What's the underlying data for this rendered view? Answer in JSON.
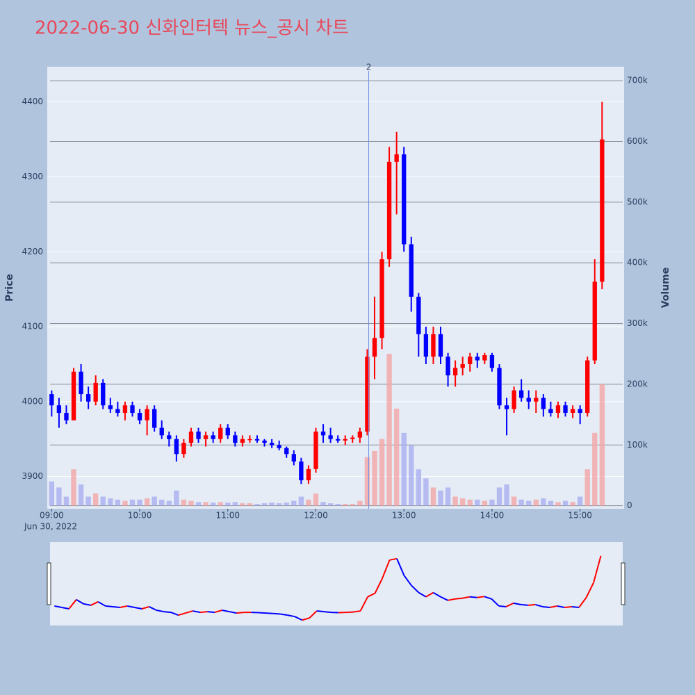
{
  "chart_data": {
    "type": "candlestick",
    "title": "2022-06-30 신화인터텍 뉴스_공시 차트",
    "y_label": "Price",
    "y2_label": "Volume",
    "x_subtitle": "Jun 30, 2022",
    "increasing_color": "#ff0000",
    "decreasing_color": "#0000ff",
    "volume_increasing_color": "#f4a6a6",
    "volume_decreasing_color": "#a9aff0",
    "grid": true,
    "x": [
      "09:00",
      "09:05",
      "09:10",
      "09:15",
      "09:20",
      "09:25",
      "09:30",
      "09:35",
      "09:40",
      "09:45",
      "09:50",
      "09:55",
      "10:00",
      "10:05",
      "10:10",
      "10:15",
      "10:20",
      "10:25",
      "10:30",
      "10:35",
      "10:40",
      "10:45",
      "10:50",
      "10:55",
      "11:00",
      "11:05",
      "11:10",
      "11:15",
      "11:20",
      "11:25",
      "11:30",
      "11:35",
      "11:40",
      "11:45",
      "11:50",
      "11:55",
      "12:00",
      "12:05",
      "12:10",
      "12:15",
      "12:20",
      "12:25",
      "12:30",
      "12:35",
      "12:40",
      "12:45",
      "12:50",
      "12:55",
      "13:00",
      "13:05",
      "13:10",
      "13:15",
      "13:20",
      "13:25",
      "13:30",
      "13:35",
      "13:40",
      "13:45",
      "13:50",
      "13:55",
      "14:00",
      "14:05",
      "14:10",
      "14:15",
      "14:20",
      "14:25",
      "14:30",
      "14:35",
      "14:40",
      "14:45",
      "14:50",
      "14:55",
      "15:00",
      "15:05",
      "15:10",
      "15:15"
    ],
    "open": [
      4010,
      3995,
      3985,
      3975,
      4040,
      4010,
      4000,
      4025,
      3995,
      3990,
      3985,
      3995,
      3985,
      3975,
      3990,
      3965,
      3955,
      3950,
      3930,
      3945,
      3960,
      3950,
      3955,
      3950,
      3965,
      3955,
      3945,
      3950,
      3950,
      3948,
      3945,
      3942,
      3938,
      3930,
      3920,
      3895,
      3910,
      3960,
      3955,
      3950,
      3948,
      3950,
      3952,
      3960,
      4060,
      4085,
      4190,
      4320,
      4330,
      4210,
      4140,
      4090,
      4060,
      4090,
      4060,
      4035,
      4045,
      4050,
      4060,
      4055,
      4062,
      4045,
      3995,
      3990,
      4015,
      4005,
      4000,
      4005,
      3990,
      3985,
      3995,
      3985,
      3990,
      3985,
      4055,
      4160
    ],
    "high": [
      4015,
      4005,
      3995,
      4045,
      4050,
      4020,
      4035,
      4030,
      4005,
      4000,
      4000,
      4000,
      3990,
      3995,
      3995,
      3975,
      3960,
      3955,
      3950,
      3965,
      3965,
      3960,
      3960,
      3970,
      3970,
      3960,
      3955,
      3955,
      3955,
      3950,
      3950,
      3948,
      3940,
      3935,
      3925,
      3915,
      3965,
      3970,
      3965,
      3955,
      3955,
      3955,
      3965,
      4070,
      4140,
      4200,
      4340,
      4360,
      4340,
      4220,
      4145,
      4100,
      4100,
      4100,
      4065,
      4055,
      4060,
      4065,
      4065,
      4065,
      4065,
      4050,
      4005,
      4020,
      4030,
      4015,
      4015,
      4010,
      4000,
      4000,
      4000,
      3995,
      3995,
      4060,
      4190,
      4400
    ],
    "low": [
      3980,
      3965,
      3970,
      3975,
      4000,
      3990,
      3995,
      3990,
      3985,
      3980,
      3975,
      3980,
      3970,
      3955,
      3960,
      3950,
      3940,
      3920,
      3925,
      3940,
      3945,
      3940,
      3945,
      3945,
      3950,
      3940,
      3940,
      3945,
      3945,
      3940,
      3938,
      3935,
      3925,
      3915,
      3890,
      3890,
      3905,
      3945,
      3945,
      3945,
      3942,
      3945,
      3945,
      3955,
      4030,
      4070,
      4180,
      4250,
      4200,
      4120,
      4060,
      4050,
      4050,
      4050,
      4020,
      4020,
      4035,
      4040,
      4045,
      4050,
      4040,
      3990,
      3955,
      3985,
      4000,
      3990,
      3985,
      3980,
      3980,
      3978,
      3980,
      3978,
      3970,
      3980,
      4050,
      4150
    ],
    "close": [
      3995,
      3985,
      3975,
      4040,
      4010,
      4000,
      4025,
      3995,
      3990,
      3985,
      3995,
      3985,
      3975,
      3990,
      3965,
      3955,
      3950,
      3930,
      3945,
      3960,
      3950,
      3955,
      3950,
      3965,
      3955,
      3945,
      3950,
      3950,
      3948,
      3945,
      3942,
      3938,
      3930,
      3920,
      3895,
      3910,
      3960,
      3955,
      3950,
      3948,
      3950,
      3952,
      3960,
      4060,
      4085,
      4190,
      4320,
      4330,
      4210,
      4140,
      4090,
      4060,
      4090,
      4060,
      4035,
      4045,
      4050,
      4060,
      4055,
      4062,
      4045,
      3995,
      3990,
      4015,
      4005,
      4000,
      4005,
      3990,
      3985,
      3995,
      3985,
      3990,
      3985,
      4055,
      4160,
      4350
    ],
    "volume": [
      40000,
      30000,
      15000,
      60000,
      35000,
      15000,
      20000,
      15000,
      12000,
      10000,
      8000,
      10000,
      10000,
      12000,
      15000,
      10000,
      8000,
      25000,
      10000,
      8000,
      6000,
      6000,
      5000,
      6000,
      5000,
      6000,
      4000,
      4000,
      3000,
      4000,
      5000,
      4000,
      5000,
      8000,
      15000,
      10000,
      20000,
      6000,
      4000,
      3000,
      3000,
      3000,
      8000,
      80000,
      90000,
      110000,
      250000,
      160000,
      120000,
      100000,
      60000,
      45000,
      30000,
      25000,
      30000,
      15000,
      12000,
      10000,
      10000,
      8000,
      10000,
      30000,
      35000,
      15000,
      10000,
      8000,
      10000,
      12000,
      8000,
      6000,
      8000,
      6000,
      15000,
      60000,
      120000,
      200000
    ],
    "xlim": [
      "08:57",
      "15:30"
    ],
    "xticks": [
      "09:00",
      "10:00",
      "11:00",
      "12:00",
      "13:00",
      "14:00",
      "15:00"
    ],
    "ylim": [
      3857,
      4447
    ],
    "yticks": [
      3900,
      4000,
      4100,
      4200,
      4300,
      4400
    ],
    "y2lim": [
      -5000,
      723000
    ],
    "y2ticks": [
      0,
      {
        "value": 100000,
        "label": "100k"
      },
      {
        "value": 200000,
        "label": "200k"
      },
      {
        "value": 300000,
        "label": "300k"
      },
      {
        "value": 400000,
        "label": "400k"
      },
      {
        "value": 500000,
        "label": "500k"
      },
      {
        "value": 600000,
        "label": "600k"
      },
      {
        "value": 700000,
        "label": "700k"
      }
    ],
    "annotation": {
      "x": "12:36",
      "text": "2"
    }
  }
}
